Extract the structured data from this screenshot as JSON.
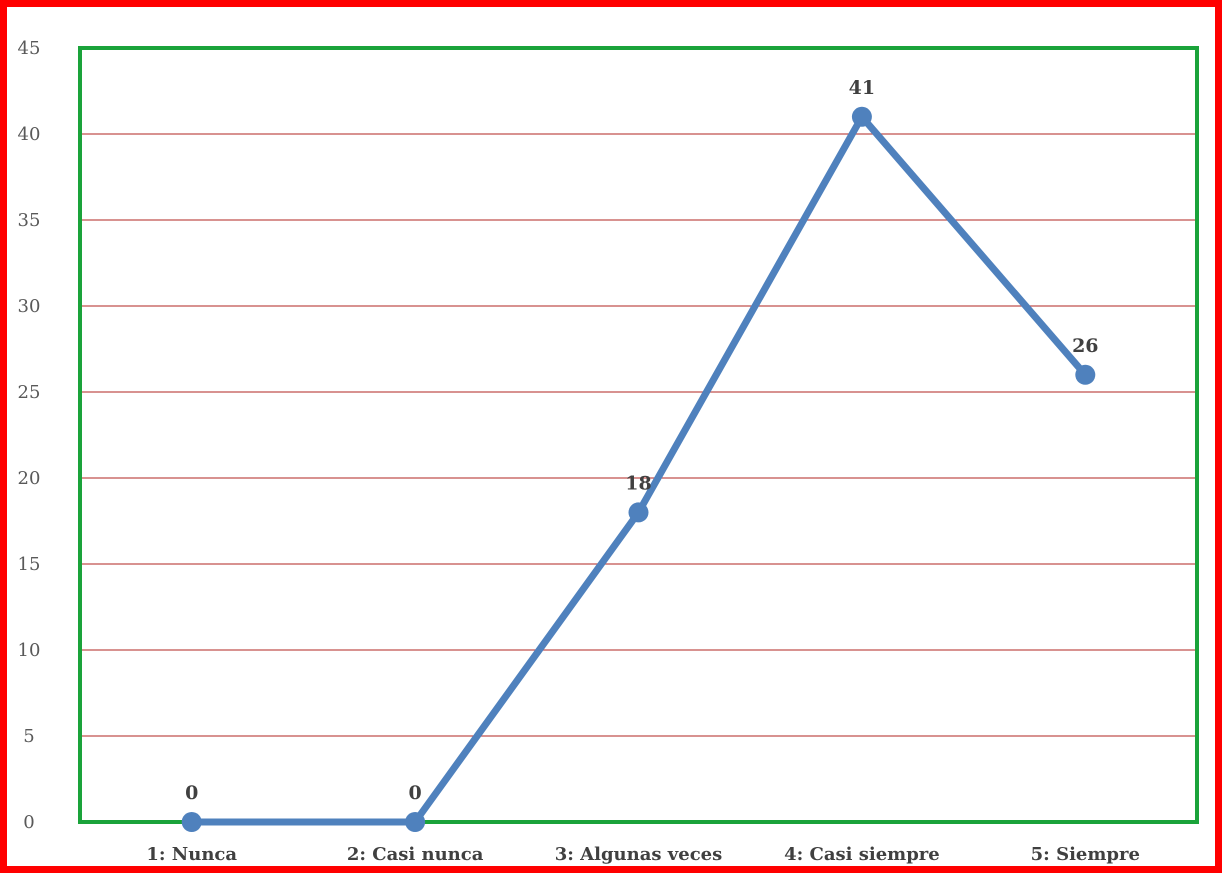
{
  "chart_data": {
    "type": "line",
    "title": "",
    "xlabel": "",
    "ylabel": "",
    "categories": [
      "1: Nunca",
      "2: Casi nunca",
      "3: Algunas veces",
      "4: Casi siempre",
      "5: Siempre"
    ],
    "series": [
      {
        "values": [
          0,
          0,
          18,
          41,
          26
        ],
        "color": "#4f81bd"
      }
    ],
    "data_labels": [
      "0",
      "0",
      "18",
      "41",
      "26"
    ],
    "ylim": [
      0,
      45
    ],
    "yticks": [
      "0",
      "5",
      "10",
      "15",
      "20",
      "25",
      "30",
      "35",
      "40",
      "45"
    ],
    "grid": true,
    "legend": "none",
    "colors": {
      "outer_border": "#ff0000",
      "plot_border": "#1aa33a",
      "gridline": "#c0504d",
      "line": "#4f81bd"
    }
  }
}
